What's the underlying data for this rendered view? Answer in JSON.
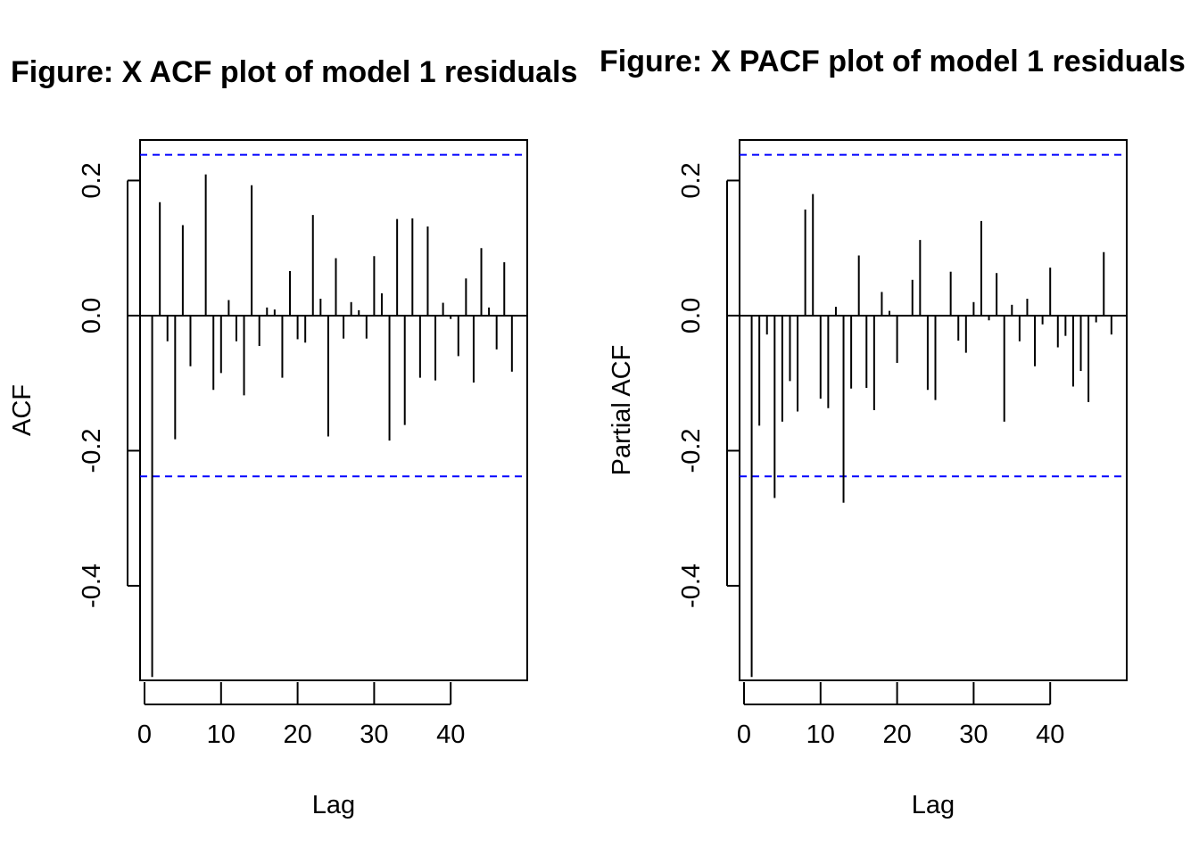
{
  "chart_data": [
    {
      "type": "bar",
      "title": "Figure:  X ACF plot of model 1 residuals",
      "xlabel": "Lag",
      "ylabel": "ACF",
      "x_ticks": [
        "0",
        "10",
        "20",
        "30",
        "40"
      ],
      "y_ticks": [
        "-0.4",
        "-0.2",
        "0.0",
        "0.2"
      ],
      "xlim": [
        0,
        49
      ],
      "ylim": [
        -0.54,
        0.26
      ],
      "ci_upper": 0.238,
      "ci_lower": -0.238,
      "ci_color": "#0000ff",
      "lags": [
        1,
        2,
        3,
        4,
        5,
        6,
        7,
        8,
        9,
        10,
        11,
        12,
        13,
        14,
        15,
        16,
        17,
        18,
        19,
        20,
        21,
        22,
        23,
        24,
        25,
        26,
        27,
        28,
        29,
        30,
        31,
        32,
        33,
        34,
        35,
        36,
        37,
        38,
        39,
        40,
        41,
        42,
        43,
        44,
        45,
        46,
        47,
        48
      ],
      "values": [
        -0.535,
        0.168,
        -0.038,
        -0.183,
        0.134,
        -0.075,
        0.0,
        0.209,
        -0.11,
        -0.085,
        0.023,
        -0.038,
        -0.118,
        0.193,
        -0.045,
        0.012,
        0.009,
        -0.092,
        0.066,
        -0.035,
        -0.04,
        0.149,
        0.025,
        -0.179,
        0.085,
        -0.034,
        0.02,
        0.008,
        -0.034,
        0.088,
        0.033,
        -0.185,
        0.143,
        -0.162,
        0.144,
        -0.092,
        0.132,
        -0.096,
        0.019,
        -0.005,
        -0.06,
        0.055,
        -0.099,
        0.1,
        0.012,
        -0.05,
        0.079,
        -0.083
      ]
    },
    {
      "type": "bar",
      "title": "Figure:  X PACF plot of model 1 residuals",
      "xlabel": "Lag",
      "ylabel": "Partial ACF",
      "x_ticks": [
        "0",
        "10",
        "20",
        "30",
        "40"
      ],
      "y_ticks": [
        "-0.4",
        "-0.2",
        "0.0",
        "0.2"
      ],
      "xlim": [
        0,
        49
      ],
      "ylim": [
        -0.54,
        0.26
      ],
      "ci_upper": 0.238,
      "ci_lower": -0.238,
      "ci_color": "#0000ff",
      "lags": [
        1,
        2,
        3,
        4,
        5,
        6,
        7,
        8,
        9,
        10,
        11,
        12,
        13,
        14,
        15,
        16,
        17,
        18,
        19,
        20,
        21,
        22,
        23,
        24,
        25,
        26,
        27,
        28,
        29,
        30,
        31,
        32,
        33,
        34,
        35,
        36,
        37,
        38,
        39,
        40,
        41,
        42,
        43,
        44,
        45,
        46,
        47,
        48
      ],
      "values": [
        -0.535,
        -0.163,
        -0.028,
        -0.27,
        -0.157,
        -0.097,
        -0.142,
        0.157,
        0.18,
        -0.123,
        -0.137,
        0.013,
        -0.277,
        -0.108,
        0.089,
        -0.107,
        -0.14,
        0.035,
        0.007,
        -0.07,
        0.0,
        0.053,
        0.112,
        -0.11,
        -0.125,
        0.0,
        0.065,
        -0.037,
        -0.055,
        0.02,
        0.14,
        -0.007,
        0.063,
        -0.157,
        0.016,
        -0.038,
        0.025,
        -0.075,
        -0.013,
        0.071,
        -0.047,
        -0.03,
        -0.105,
        -0.082,
        -0.128,
        -0.01,
        0.094,
        -0.028
      ]
    }
  ]
}
